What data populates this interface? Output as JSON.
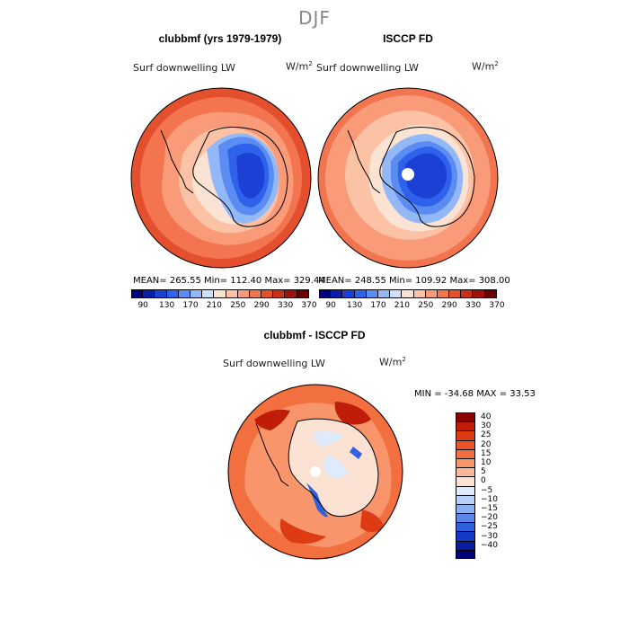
{
  "season": "DJF",
  "panels": [
    {
      "title": "clubbmf (yrs 1979-1979)",
      "variable": "Surf downwelling LW",
      "units": "W/m",
      "units_exp": "2",
      "stats": "MEAN= 265.55  Min= 112.40  Max= 329.44"
    },
    {
      "title": "ISCCP FD",
      "variable": "Surf downwelling LW",
      "units": "W/m",
      "units_exp": "2",
      "stats": "MEAN= 248.55  Min= 109.92  Max= 308.00"
    }
  ],
  "diff_panel": {
    "title": "clubbmf - ISCCP FD",
    "variable": "Surf downwelling LW",
    "units": "W/m",
    "units_exp": "2",
    "stats": "MIN = -34.68 MAX =  33.53"
  },
  "colorbar_top": {
    "colors": [
      "#00007f",
      "#0a1fa8",
      "#1c3fd4",
      "#2f62ea",
      "#5a8cf2",
      "#93b8f7",
      "#cfe0fa",
      "#fbe3d3",
      "#fbc2a5",
      "#f99b78",
      "#f37550",
      "#e4502e",
      "#c7301b",
      "#9a1409",
      "#6a0000"
    ],
    "tick_labels": [
      "90",
      "130",
      "170",
      "210",
      "250",
      "290",
      "330",
      "370"
    ]
  },
  "colorbar_diff": {
    "colors": [
      "#8b0000",
      "#c01d08",
      "#dc3b13",
      "#ea5428",
      "#f2703f",
      "#f8956a",
      "#fbb898",
      "#fce2d2",
      "#dfeafb",
      "#b8cff6",
      "#8aaff1",
      "#5b87ea",
      "#3060e0",
      "#1638c8",
      "#0a1ba0",
      "#00007a"
    ],
    "tick_labels": [
      "40",
      "30",
      "25",
      "20",
      "15",
      "10",
      "5",
      "0",
      "−5",
      "−10",
      "−15",
      "−20",
      "−25",
      "−30",
      "−40"
    ]
  },
  "chart_data": [
    {
      "type": "heatmap",
      "title": "clubbmf (yrs 1979-1979)",
      "field": "Surf downwelling LW",
      "units": "W/m2",
      "projection": "south polar stereographic",
      "mean": 265.55,
      "min": 112.4,
      "max": 329.44,
      "contour_levels": [
        90,
        110,
        130,
        150,
        170,
        190,
        210,
        230,
        250,
        270,
        290,
        310,
        330,
        350,
        370
      ]
    },
    {
      "type": "heatmap",
      "title": "ISCCP FD",
      "field": "Surf downwelling LW",
      "units": "W/m2",
      "projection": "south polar stereographic",
      "mean": 248.55,
      "min": 109.92,
      "max": 308.0,
      "contour_levels": [
        90,
        110,
        130,
        150,
        170,
        190,
        210,
        230,
        250,
        270,
        290,
        310,
        330,
        350,
        370
      ]
    },
    {
      "type": "heatmap",
      "title": "clubbmf - ISCCP FD",
      "field": "Surf downwelling LW",
      "units": "W/m2",
      "projection": "south polar stereographic",
      "min": -34.68,
      "max": 33.53,
      "contour_levels": [
        -40,
        -30,
        -25,
        -20,
        -15,
        -10,
        -5,
        0,
        5,
        10,
        15,
        20,
        25,
        30,
        40
      ]
    }
  ]
}
